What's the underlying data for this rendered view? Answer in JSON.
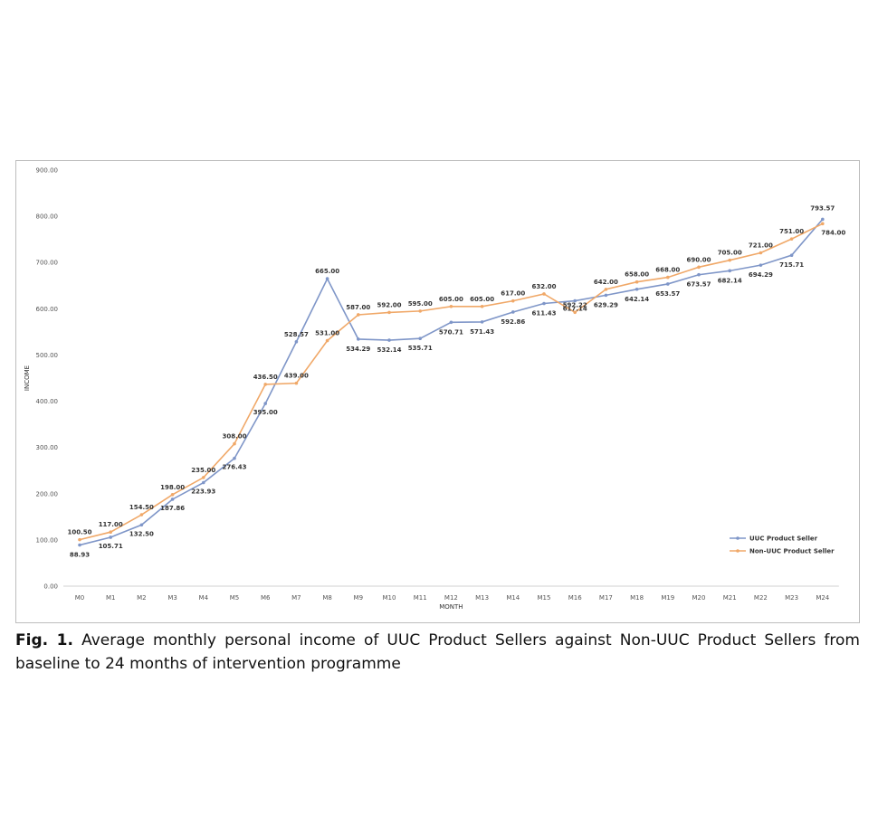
{
  "chart_data": {
    "type": "line",
    "xlabel": "MONTH",
    "ylabel": "INCOME",
    "ylim": [
      0,
      900
    ],
    "yticks": [
      "0.00",
      "100.00",
      "200.00",
      "300.00",
      "400.00",
      "500.00",
      "600.00",
      "700.00",
      "800.00",
      "900.00"
    ],
    "categories": [
      "M0",
      "M1",
      "M2",
      "M3",
      "M4",
      "M5",
      "M6",
      "M7",
      "M8",
      "M9",
      "M10",
      "M11",
      "M12",
      "M13",
      "M14",
      "M15",
      "M16",
      "M17",
      "M18",
      "M19",
      "M20",
      "M21",
      "M22",
      "M23",
      "M24"
    ],
    "legend_position": "bottom-right",
    "grid": false,
    "series": [
      {
        "name": "UUC Product Seller",
        "color": "#7f96c8",
        "values": [
          88.93,
          105.71,
          132.5,
          187.86,
          223.93,
          276.43,
          395.0,
          528.57,
          665.0,
          534.29,
          532.14,
          535.71,
          570.71,
          571.43,
          592.86,
          611.43,
          617.14,
          629.29,
          642.14,
          653.57,
          673.57,
          682.14,
          694.29,
          715.71,
          793.57
        ],
        "labels": [
          "88.93",
          "105.71",
          "132.50",
          "187.86",
          "223.93",
          "276.43",
          "395.00",
          "528.57",
          "665.00",
          "534.29",
          "532.14",
          "535.71",
          "570.71",
          "571.43",
          "592.86",
          "611.43",
          "617.14",
          "629.29",
          "642.14",
          "653.57",
          "673.57",
          "682.14",
          "694.29",
          "715.71",
          "793.57"
        ]
      },
      {
        "name": "Non-UUC Product Seller",
        "color": "#f0a868",
        "values": [
          100.5,
          117.0,
          154.5,
          198.0,
          235.0,
          308.0,
          436.5,
          439.0,
          531.0,
          587.0,
          592.0,
          595.0,
          605.0,
          605.0,
          617.0,
          632.0,
          592.22,
          642.0,
          658.0,
          668.0,
          690.0,
          705.0,
          721.0,
          751.0,
          784.0
        ],
        "labels": [
          "100.50",
          "117.00",
          "154.50",
          "198.00",
          "235.00",
          "308.00",
          "436.50",
          "439.00",
          "531.00",
          "587.00",
          "592.00",
          "595.00",
          "605.00",
          "605.00",
          "617.00",
          "632.00",
          "592.22",
          "642.00",
          "658.00",
          "668.00",
          "690.00",
          "705.00",
          "721.00",
          "751.00",
          "784.00"
        ]
      }
    ]
  },
  "caption": {
    "label": "Fig. 1.",
    "text": "Average monthly personal income of UUC Product Sellers against Non-UUC Product Sellers from baseline to 24 months of intervention programme"
  }
}
